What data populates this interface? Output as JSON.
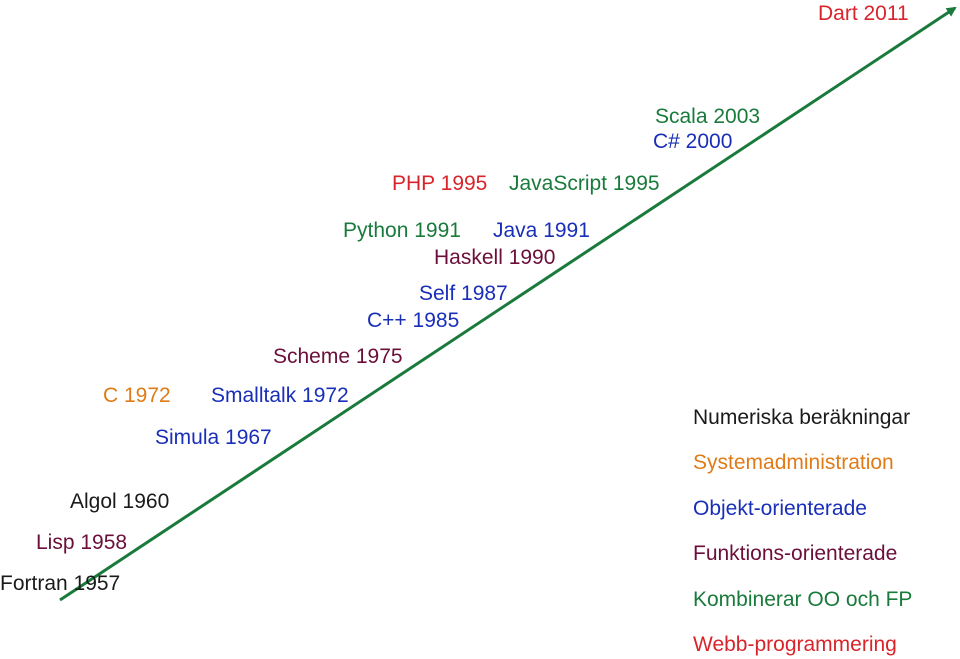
{
  "colors": {
    "numeric": "#1a1a1a",
    "sysadmin": "#e07b18",
    "oo": "#1a2fb8",
    "fp": "#6b0f3a",
    "combined": "#1a7a3c",
    "web": "#d8252b",
    "arrow": "#1a7a3c"
  },
  "languages": [
    {
      "label": "Fortran 1957",
      "category": "numeric"
    },
    {
      "label": "Lisp 1958",
      "category": "fp"
    },
    {
      "label": "Algol 1960",
      "category": "numeric"
    },
    {
      "label": "Simula 1967",
      "category": "oo"
    },
    {
      "label": "C 1972",
      "category": "sysadmin"
    },
    {
      "label": "Smalltalk 1972",
      "category": "oo"
    },
    {
      "label": "Scheme 1975",
      "category": "fp"
    },
    {
      "label": "C++ 1985",
      "category": "oo"
    },
    {
      "label": "Self 1987",
      "category": "oo"
    },
    {
      "label": "Haskell 1990",
      "category": "fp"
    },
    {
      "label": "Python 1991",
      "category": "combined"
    },
    {
      "label": "Java 1991",
      "category": "oo"
    },
    {
      "label": "PHP 1995",
      "category": "web"
    },
    {
      "label": "JavaScript 1995",
      "category": "combined"
    },
    {
      "label": "C# 2000",
      "category": "oo"
    },
    {
      "label": "Scala 2003",
      "category": "combined"
    },
    {
      "label": "Dart 2011",
      "category": "web"
    }
  ],
  "legend": [
    {
      "label": "Numeriska beräkningar",
      "category": "numeric"
    },
    {
      "label": "Systemadministration",
      "category": "sysadmin"
    },
    {
      "label": "Objekt-orienterade",
      "category": "oo"
    },
    {
      "label": "Funktions-orienterade",
      "category": "fp"
    },
    {
      "label": "Kombinerar OO och FP",
      "category": "combined"
    },
    {
      "label": "Webb-programmering",
      "category": "web"
    }
  ]
}
